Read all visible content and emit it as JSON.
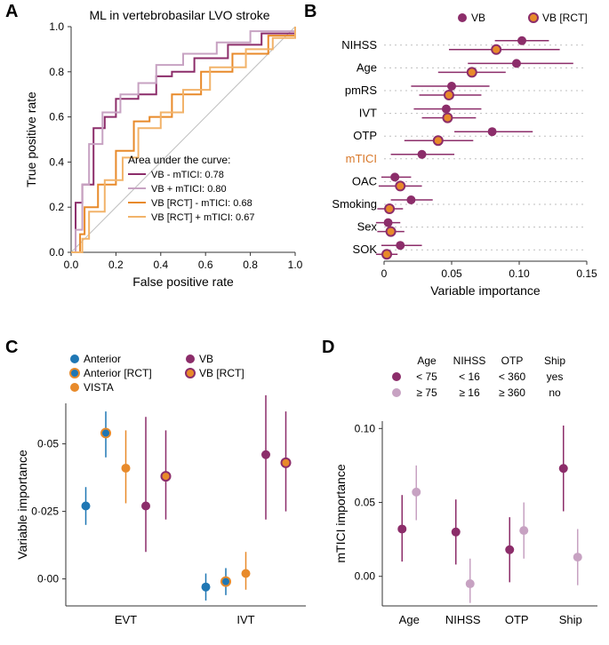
{
  "colors": {
    "vb": "#8c2d6a",
    "vb_light": "#c7a2c2",
    "vb_rct": "#e88a2a",
    "vb_rct_light": "#f2b36a",
    "anterior": "#1f77b4",
    "axis": "#333333",
    "grid": "#d9d9d9",
    "bg": "#ffffff",
    "mtici_label": "#d8782a",
    "dotgrid": "#bfbfbf"
  },
  "panelA": {
    "label": "A",
    "title": "ML in vertebrobasilar LVO stroke",
    "xlabel": "False positive rate",
    "ylabel": "True positive rate",
    "xlim": [
      0,
      1
    ],
    "ylim": [
      0,
      1
    ],
    "ticks": [
      0.0,
      0.2,
      0.4,
      0.6,
      0.8,
      1.0
    ],
    "legend_title": "Area under the curve:",
    "series": [
      {
        "name": "VB - mTICI: 0.78",
        "color": "#8c2d6a",
        "width": 2,
        "pts": [
          [
            0,
            0
          ],
          [
            0.02,
            0.22
          ],
          [
            0.05,
            0.3
          ],
          [
            0.1,
            0.55
          ],
          [
            0.15,
            0.6
          ],
          [
            0.2,
            0.68
          ],
          [
            0.3,
            0.7
          ],
          [
            0.38,
            0.78
          ],
          [
            0.45,
            0.8
          ],
          [
            0.55,
            0.86
          ],
          [
            0.7,
            0.92
          ],
          [
            0.85,
            0.97
          ],
          [
            1,
            1
          ]
        ]
      },
      {
        "name": "VB + mTICI: 0.80",
        "color": "#c7a2c2",
        "width": 2,
        "pts": [
          [
            0,
            0
          ],
          [
            0.02,
            0.1
          ],
          [
            0.05,
            0.3
          ],
          [
            0.08,
            0.48
          ],
          [
            0.14,
            0.62
          ],
          [
            0.22,
            0.7
          ],
          [
            0.3,
            0.75
          ],
          [
            0.38,
            0.83
          ],
          [
            0.5,
            0.88
          ],
          [
            0.65,
            0.93
          ],
          [
            0.8,
            0.98
          ],
          [
            1,
            1
          ]
        ]
      },
      {
        "name": "VB [RCT] - mTICI: 0.68",
        "color": "#e88a2a",
        "width": 2,
        "pts": [
          [
            0,
            0
          ],
          [
            0.04,
            0.08
          ],
          [
            0.06,
            0.2
          ],
          [
            0.12,
            0.3
          ],
          [
            0.2,
            0.45
          ],
          [
            0.28,
            0.58
          ],
          [
            0.35,
            0.6
          ],
          [
            0.45,
            0.7
          ],
          [
            0.58,
            0.8
          ],
          [
            0.72,
            0.88
          ],
          [
            0.88,
            0.96
          ],
          [
            1,
            1
          ]
        ]
      },
      {
        "name": "VB [RCT] + mTICI: 0.67",
        "color": "#f2b36a",
        "width": 2,
        "pts": [
          [
            0,
            0
          ],
          [
            0.05,
            0.06
          ],
          [
            0.08,
            0.18
          ],
          [
            0.15,
            0.32
          ],
          [
            0.23,
            0.42
          ],
          [
            0.3,
            0.55
          ],
          [
            0.4,
            0.62
          ],
          [
            0.5,
            0.72
          ],
          [
            0.62,
            0.82
          ],
          [
            0.78,
            0.9
          ],
          [
            0.9,
            0.95
          ],
          [
            1,
            1
          ]
        ]
      }
    ]
  },
  "panelB": {
    "label": "B",
    "legend": [
      {
        "name": "VB",
        "color": "#8c2d6a",
        "ring": false
      },
      {
        "name": "VB [RCT]",
        "color": "#e88a2a",
        "ring": true,
        "ring_color": "#8c2d6a"
      }
    ],
    "xlabel": "Variable importance",
    "xlim": [
      0,
      0.15
    ],
    "xticks": [
      0,
      0.05,
      0.1,
      0.15
    ],
    "rows": [
      {
        "label": "NIHSS",
        "vb": {
          "x": 0.102,
          "lo": 0.082,
          "hi": 0.122
        },
        "rct": {
          "x": 0.083,
          "lo": 0.048,
          "hi": 0.13
        }
      },
      {
        "label": "Age",
        "vb": {
          "x": 0.098,
          "lo": 0.062,
          "hi": 0.14
        },
        "rct": {
          "x": 0.065,
          "lo": 0.04,
          "hi": 0.09
        }
      },
      {
        "label": "pmRS",
        "vb": {
          "x": 0.05,
          "lo": 0.02,
          "hi": 0.078
        },
        "rct": {
          "x": 0.048,
          "lo": 0.026,
          "hi": 0.072
        }
      },
      {
        "label": "IVT",
        "vb": {
          "x": 0.046,
          "lo": 0.022,
          "hi": 0.072
        },
        "rct": {
          "x": 0.047,
          "lo": 0.028,
          "hi": 0.068
        }
      },
      {
        "label": "OTP",
        "vb": {
          "x": 0.08,
          "lo": 0.052,
          "hi": 0.11
        },
        "rct": {
          "x": 0.04,
          "lo": 0.015,
          "hi": 0.066
        }
      },
      {
        "label": "mTICI",
        "color": "#d8782a",
        "vb": {
          "x": 0.028,
          "lo": 0.005,
          "hi": 0.052
        },
        "rct": null
      },
      {
        "label": "OAC",
        "vb": {
          "x": 0.008,
          "lo": -0.002,
          "hi": 0.02
        },
        "rct": {
          "x": 0.012,
          "lo": -0.004,
          "hi": 0.028
        }
      },
      {
        "label": "Smoking",
        "vb": {
          "x": 0.02,
          "lo": 0.005,
          "hi": 0.036
        },
        "rct": {
          "x": 0.004,
          "lo": -0.005,
          "hi": 0.014
        }
      },
      {
        "label": "Sex",
        "vb": {
          "x": 0.003,
          "lo": -0.006,
          "hi": 0.012
        },
        "rct": {
          "x": 0.005,
          "lo": -0.005,
          "hi": 0.015
        }
      },
      {
        "label": "SOK",
        "vb": {
          "x": 0.012,
          "lo": -0.002,
          "hi": 0.028
        },
        "rct": {
          "x": 0.002,
          "lo": -0.006,
          "hi": 0.01
        }
      }
    ]
  },
  "panelC": {
    "label": "C",
    "ylabel": "Variable importance",
    "ylim": [
      -0.01,
      0.065
    ],
    "yticks": [
      0.0,
      0.025,
      0.05
    ],
    "ytick_labels": [
      "0·00",
      "0·025",
      "0·05"
    ],
    "groups": [
      "EVT",
      "IVT"
    ],
    "legend": [
      {
        "name": "Anterior",
        "color": "#1f77b4",
        "ring": false
      },
      {
        "name": "Anterior [RCT]",
        "color": "#1f77b4",
        "ring": true,
        "ring_color": "#e88a2a"
      },
      {
        "name": "VISTA",
        "color": "#e88a2a",
        "ring": false
      },
      {
        "name": "VB",
        "color": "#8c2d6a",
        "ring": false
      },
      {
        "name": "VB [RCT]",
        "color": "#e88a2a",
        "ring": true,
        "ring_color": "#8c2d6a"
      }
    ],
    "points": {
      "EVT": [
        {
          "series": "Anterior",
          "x": 0,
          "y": 0.027,
          "lo": 0.02,
          "hi": 0.034
        },
        {
          "series": "Anterior [RCT]",
          "x": 1,
          "y": 0.054,
          "lo": 0.045,
          "hi": 0.062
        },
        {
          "series": "VISTA",
          "x": 2,
          "y": 0.041,
          "lo": 0.028,
          "hi": 0.055
        },
        {
          "series": "VB",
          "x": 3,
          "y": 0.027,
          "lo": 0.01,
          "hi": 0.06
        },
        {
          "series": "VB [RCT]",
          "x": 4,
          "y": 0.038,
          "lo": 0.022,
          "hi": 0.055
        }
      ],
      "IVT": [
        {
          "series": "Anterior",
          "x": 0,
          "y": -0.003,
          "lo": -0.008,
          "hi": 0.002
        },
        {
          "series": "Anterior [RCT]",
          "x": 1,
          "y": -0.001,
          "lo": -0.006,
          "hi": 0.004
        },
        {
          "series": "VISTA",
          "x": 2,
          "y": 0.002,
          "lo": -0.004,
          "hi": 0.01
        },
        {
          "series": "VB",
          "x": 3,
          "y": 0.046,
          "lo": 0.022,
          "hi": 0.068
        },
        {
          "series": "VB [RCT]",
          "x": 4,
          "y": 0.043,
          "lo": 0.025,
          "hi": 0.062
        }
      ]
    }
  },
  "panelD": {
    "label": "D",
    "ylabel": "mTICI importance",
    "ylim": [
      -0.02,
      0.105
    ],
    "yticks": [
      0.0,
      0.05,
      0.1
    ],
    "ytick_labels": [
      "0.00",
      "0.05",
      "0.10"
    ],
    "header": {
      "cols": [
        "Age",
        "NIHSS",
        "OTP",
        "Ship"
      ],
      "row1": {
        "color": "#8c2d6a",
        "vals": [
          "< 75",
          "< 16",
          "< 360",
          "yes"
        ]
      },
      "row2": {
        "color": "#c7a2c2",
        "vals": [
          "≥ 75",
          "≥ 16",
          "≥ 360",
          "no"
        ]
      }
    },
    "groups": [
      "Age",
      "NIHSS",
      "OTP",
      "Ship"
    ],
    "points": [
      {
        "g": "Age",
        "a": {
          "y": 0.032,
          "lo": 0.01,
          "hi": 0.055
        },
        "b": {
          "y": 0.057,
          "lo": 0.038,
          "hi": 0.075
        }
      },
      {
        "g": "NIHSS",
        "a": {
          "y": 0.03,
          "lo": 0.008,
          "hi": 0.052
        },
        "b": {
          "y": -0.005,
          "lo": -0.018,
          "hi": 0.012
        }
      },
      {
        "g": "OTP",
        "a": {
          "y": 0.018,
          "lo": -0.004,
          "hi": 0.04
        },
        "b": {
          "y": 0.031,
          "lo": 0.012,
          "hi": 0.05
        }
      },
      {
        "g": "Ship",
        "a": {
          "y": 0.073,
          "lo": 0.044,
          "hi": 0.102
        },
        "b": {
          "y": 0.013,
          "lo": -0.006,
          "hi": 0.032
        }
      }
    ]
  }
}
